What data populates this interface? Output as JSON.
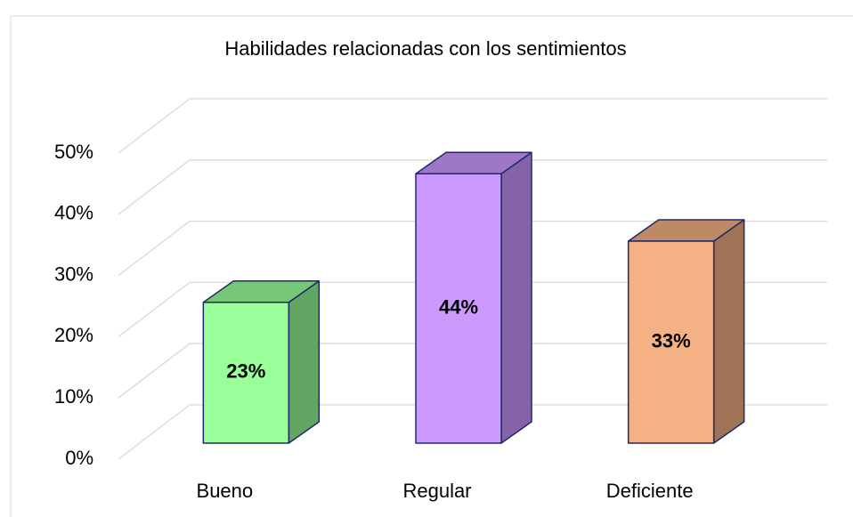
{
  "chart_data": {
    "type": "bar3d",
    "title": "Habilidades relacionadas con los sentimientos",
    "categories": [
      "Bueno",
      "Regular",
      "Deficiente"
    ],
    "values": [
      23,
      44,
      33
    ],
    "value_labels": [
      "23%",
      "44%",
      "33%"
    ],
    "colors": [
      "#99ff99",
      "#cc99ff",
      "#f4b183"
    ],
    "ylim": [
      0,
      50
    ],
    "yticks": [
      {
        "value": 0,
        "label": "0%"
      },
      {
        "value": 10,
        "label": "10%"
      },
      {
        "value": 20,
        "label": "20%"
      },
      {
        "value": 30,
        "label": "30%"
      },
      {
        "value": 40,
        "label": "40%"
      },
      {
        "value": 50,
        "label": "50%"
      }
    ],
    "grid": true
  }
}
